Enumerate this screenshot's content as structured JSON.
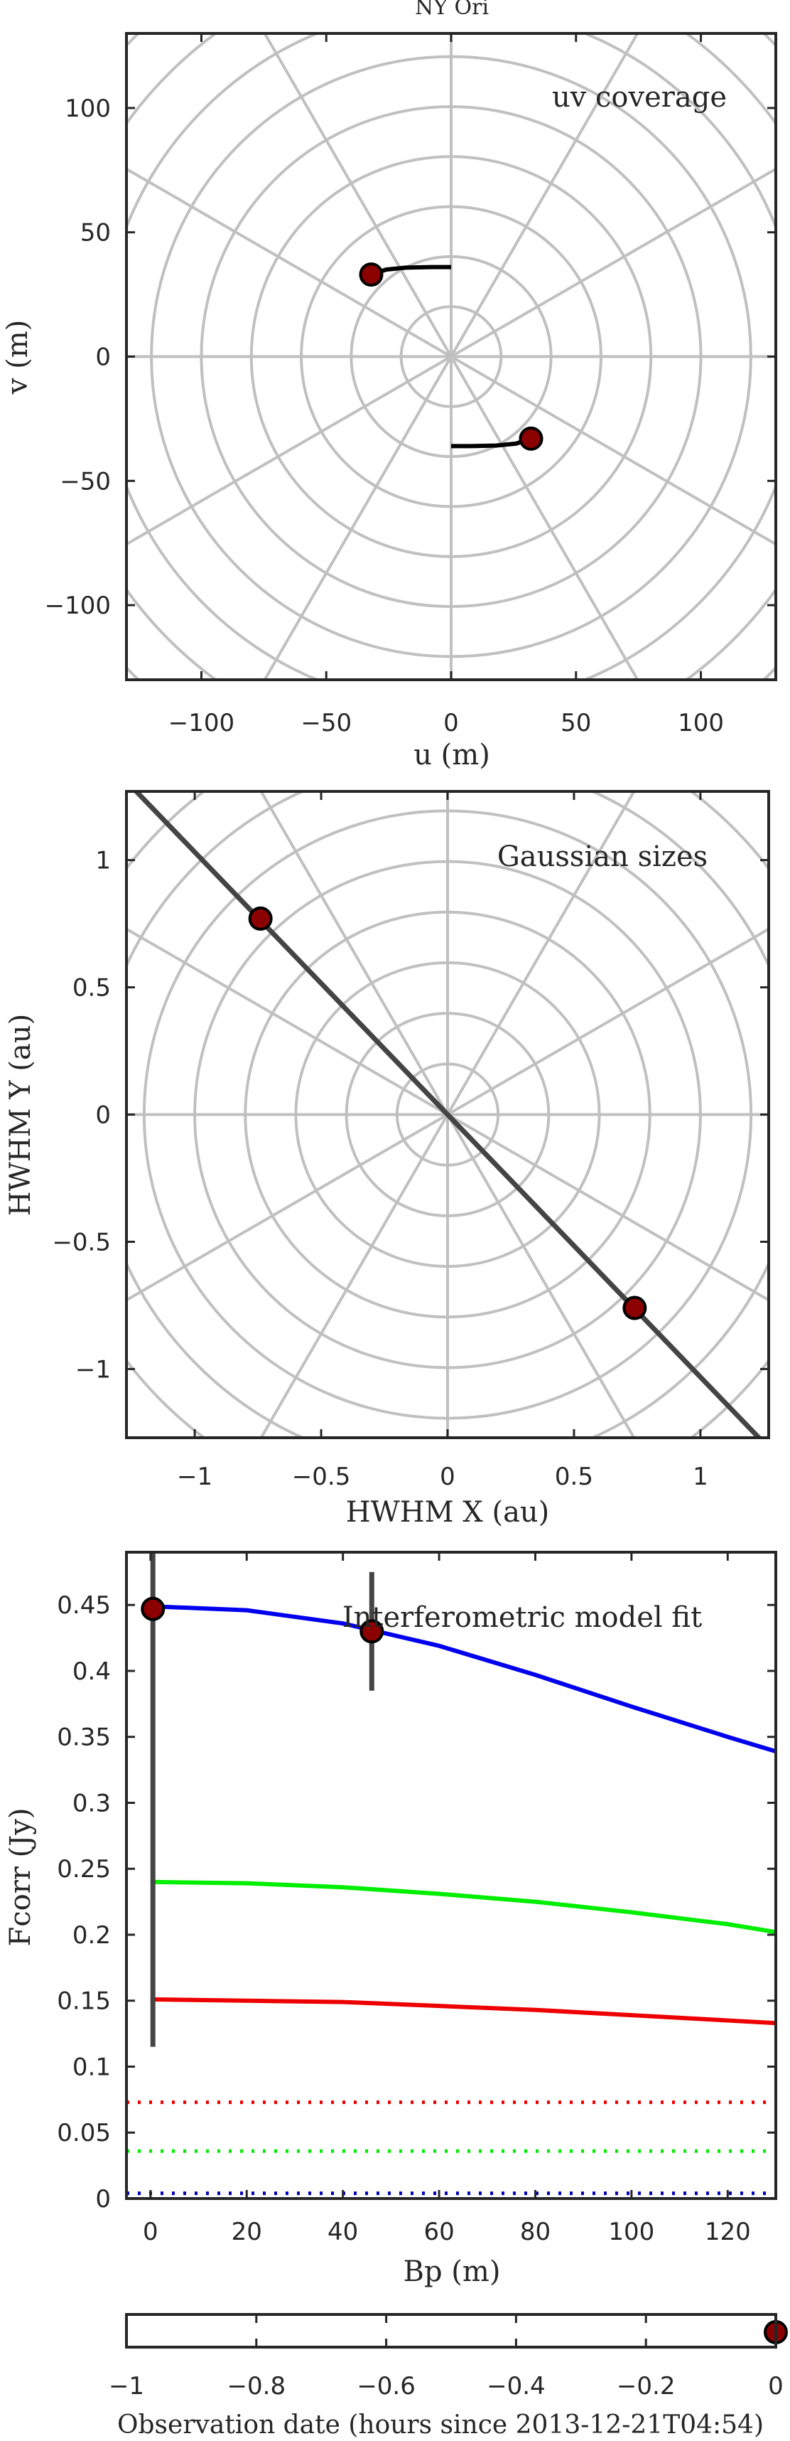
{
  "figure_title": "NY Ori",
  "chart_data": [
    {
      "type": "scatter",
      "id": "uv",
      "title": "uv coverage",
      "xlabel": "u (m)",
      "ylabel": "v (m)",
      "xlim": [
        -130,
        130
      ],
      "ylim": [
        -130,
        130
      ],
      "xticks": [
        -100,
        -50,
        0,
        50,
        100
      ],
      "yticks": [
        -100,
        -50,
        0,
        50,
        100
      ],
      "polar_grid": true,
      "grid_radii": [
        20,
        40,
        60,
        80,
        100,
        120,
        140,
        160,
        180
      ],
      "grid_spoke_deg": 30,
      "tracks": [
        {
          "points": [
            [
              -32,
              33
            ],
            [
              -26,
              35
            ],
            [
              -18,
              35.8
            ],
            [
              -8,
              36
            ],
            [
              0,
              36
            ]
          ]
        },
        {
          "points": [
            [
              32,
              -33
            ],
            [
              26,
              -35
            ],
            [
              18,
              -35.8
            ],
            [
              8,
              -36
            ],
            [
              0,
              -36
            ]
          ]
        }
      ],
      "points": [
        [
          -32,
          33
        ],
        [
          32,
          -33
        ]
      ],
      "colors": {
        "track": "#000000",
        "marker": "#8b0000",
        "grid": "#c0c0c0"
      }
    },
    {
      "type": "scatter",
      "id": "sizes",
      "title": "Gaussian sizes",
      "xlabel": "HWHM X (au)",
      "ylabel": "HWHM Y (au)",
      "xlim": [
        -1.27,
        1.27
      ],
      "ylim": [
        -1.27,
        1.27
      ],
      "xticks": [
        -1,
        -0.5,
        0,
        0.5,
        1
      ],
      "yticks": [
        -1,
        -0.5,
        0,
        0.5,
        1
      ],
      "polar_grid": true,
      "grid_radii": [
        0.2,
        0.4,
        0.6,
        0.8,
        1.0,
        1.2,
        1.4,
        1.6,
        1.8
      ],
      "grid_spoke_deg": 30,
      "line": [
        [
          -1.27,
          1.31
        ],
        [
          1.27,
          -1.31
        ]
      ],
      "points": [
        [
          -0.74,
          0.77
        ],
        [
          0.74,
          -0.76
        ]
      ],
      "colors": {
        "line": "#444444",
        "marker": "#8b0000",
        "grid": "#c0c0c0"
      }
    },
    {
      "type": "line",
      "id": "fit",
      "title": "Interferometric model fit",
      "xlabel": "Bp (m)",
      "ylabel": "Fcorr (Jy)",
      "xlim": [
        -5,
        130
      ],
      "ylim": [
        0,
        0.49
      ],
      "xticks": [
        0,
        20,
        40,
        60,
        80,
        100,
        120
      ],
      "yticks": [
        0,
        0.05,
        0.1,
        0.15,
        0.2,
        0.25,
        0.3,
        0.35,
        0.4,
        0.45
      ],
      "series": [
        {
          "color": "#0000ee",
          "style": "solid",
          "x": [
            0,
            20,
            40,
            60,
            80,
            100,
            120,
            130
          ],
          "y": [
            0.449,
            0.446,
            0.436,
            0.419,
            0.397,
            0.373,
            0.35,
            0.339
          ]
        },
        {
          "color": "#00ee00",
          "style": "solid",
          "x": [
            0,
            20,
            40,
            60,
            80,
            100,
            120,
            130
          ],
          "y": [
            0.24,
            0.239,
            0.236,
            0.231,
            0.225,
            0.217,
            0.208,
            0.202
          ]
        },
        {
          "color": "#ee0000",
          "style": "solid",
          "x": [
            0,
            20,
            40,
            60,
            80,
            100,
            120,
            130
          ],
          "y": [
            0.151,
            0.15,
            0.149,
            0.146,
            0.143,
            0.139,
            0.135,
            0.133
          ]
        },
        {
          "color": "#ee0000",
          "style": "dotted",
          "x": [
            -5,
            130
          ],
          "y": [
            0.073,
            0.073
          ]
        },
        {
          "color": "#00ee00",
          "style": "dotted",
          "x": [
            -5,
            130
          ],
          "y": [
            0.036,
            0.036
          ]
        },
        {
          "color": "#0000bb",
          "style": "dotted",
          "x": [
            -5,
            130
          ],
          "y": [
            0.004,
            0.004
          ]
        }
      ],
      "points": [
        {
          "x": 0.5,
          "y": 0.447,
          "err_low": 0.115,
          "err_high": 0.49
        },
        {
          "x": 46,
          "y": 0.43,
          "err_low": 0.385,
          "err_high": 0.475
        }
      ],
      "colors": {
        "marker": "#8b0000",
        "errorbar": "#444444"
      }
    },
    {
      "type": "scatter",
      "id": "time",
      "xlabel": "Observation date (hours since 2013-12-21T04:54)",
      "xlim": [
        -1,
        0
      ],
      "xticks": [
        -1,
        -0.8,
        -0.6,
        -0.4,
        -0.2,
        0
      ],
      "points": [
        [
          0,
          0
        ]
      ],
      "colors": {
        "marker": "#8b0000"
      }
    }
  ]
}
